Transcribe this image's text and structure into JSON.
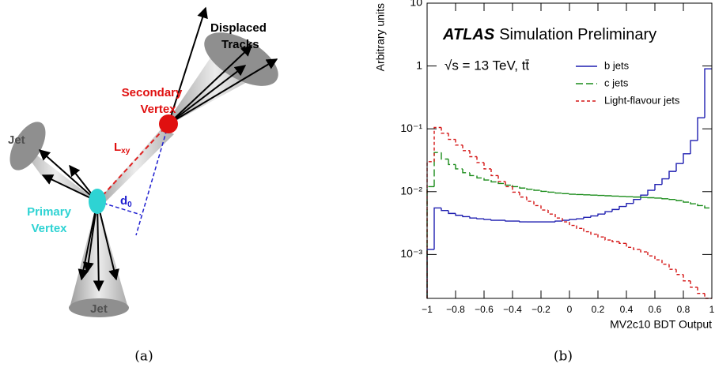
{
  "diagram": {
    "displaced_tracks": [
      "Displaced",
      "Tracks"
    ],
    "secondary_vertex": [
      "Secondary",
      "Vertex"
    ],
    "primary_vertex": [
      "Primary",
      "Vertex"
    ],
    "jet_left": "Jet",
    "jet_bottom": "Jet",
    "lxy": {
      "text": "L",
      "sub": "xy"
    },
    "d0": {
      "text": "d",
      "sub": "0"
    },
    "caption": "(a)"
  },
  "chart_data": {
    "type": "histogram",
    "caption": "(b)",
    "experiment": "ATLAS",
    "title": "Simulation Preliminary",
    "subtitle": "√s = 13 TeV, tt̄",
    "xlabel": "MV2c10 BDT Output",
    "ylabel": "Arbitrary units",
    "log_y": true,
    "legend": "upper right",
    "xlim": [
      -1,
      1
    ],
    "ylim": [
      0.0002,
      10
    ],
    "xticks": [
      {
        "value": -1,
        "label": "−1"
      },
      {
        "value": -0.8,
        "label": "−0.8"
      },
      {
        "value": -0.6,
        "label": "−0.6"
      },
      {
        "value": -0.4,
        "label": "−0.4"
      },
      {
        "value": -0.2,
        "label": "−0.2"
      },
      0,
      0.2,
      0.4,
      0.6,
      0.8,
      1
    ],
    "yticks": [
      {
        "value": 0.001,
        "label": "10⁻³"
      },
      {
        "value": 0.01,
        "label": "10⁻²"
      },
      {
        "value": 0.1,
        "label": "10⁻¹"
      },
      1,
      10
    ],
    "bins": [
      -1,
      -0.95,
      -0.9,
      -0.85,
      -0.8,
      -0.75,
      -0.7,
      -0.65,
      -0.6,
      -0.55,
      -0.5,
      -0.45,
      -0.4,
      -0.35,
      -0.3,
      -0.25,
      -0.2,
      -0.15,
      -0.1,
      -0.05,
      0,
      0.05,
      0.1,
      0.15,
      0.2,
      0.25,
      0.3,
      0.35,
      0.4,
      0.45,
      0.5,
      0.55,
      0.6,
      0.65,
      0.7,
      0.75,
      0.8,
      0.85,
      0.9,
      0.95,
      1
    ],
    "series": [
      {
        "name": "b jets",
        "color": "#1f1fb0",
        "linestyle": "solid",
        "values": [
          0.0012,
          0.0055,
          0.005,
          0.0045,
          0.0042,
          0.004,
          0.0038,
          0.0037,
          0.0036,
          0.0035,
          0.0035,
          0.0034,
          0.0034,
          0.0033,
          0.0033,
          0.0033,
          0.0033,
          0.0033,
          0.0034,
          0.0035,
          0.0036,
          0.0037,
          0.0039,
          0.0041,
          0.0044,
          0.0048,
          0.0052,
          0.0058,
          0.0065,
          0.0075,
          0.0088,
          0.0105,
          0.013,
          0.016,
          0.021,
          0.028,
          0.04,
          0.065,
          0.15,
          0.9
        ]
      },
      {
        "name": "c jets",
        "color": "#1a8c1a",
        "linestyle": "dashed",
        "values": [
          0.012,
          0.042,
          0.033,
          0.027,
          0.023,
          0.02,
          0.018,
          0.0165,
          0.0153,
          0.0143,
          0.0135,
          0.0127,
          0.012,
          0.0114,
          0.0109,
          0.0105,
          0.0101,
          0.0098,
          0.0095,
          0.0093,
          0.0091,
          0.009,
          0.0089,
          0.0088,
          0.0087,
          0.0086,
          0.0085,
          0.0084,
          0.0083,
          0.0082,
          0.0081,
          0.008,
          0.0079,
          0.0077,
          0.0075,
          0.0072,
          0.0068,
          0.0064,
          0.006,
          0.0055
        ]
      },
      {
        "name": "Light-flavour jets",
        "color": "#d41515",
        "linestyle": "dotted",
        "values": [
          0.03,
          0.105,
          0.085,
          0.068,
          0.055,
          0.045,
          0.036,
          0.029,
          0.023,
          0.018,
          0.0145,
          0.012,
          0.0098,
          0.0082,
          0.007,
          0.006,
          0.0051,
          0.0044,
          0.0038,
          0.0033,
          0.0029,
          0.0026,
          0.0023,
          0.0021,
          0.0019,
          0.0017,
          0.0016,
          0.0015,
          0.0013,
          0.0012,
          0.0011,
          0.00095,
          0.00082,
          0.0007,
          0.00058,
          0.00048,
          0.00038,
          0.0003,
          0.00024,
          0.0002
        ]
      }
    ]
  }
}
